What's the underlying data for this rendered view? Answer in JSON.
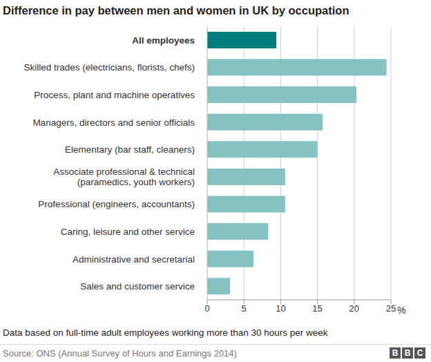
{
  "chart_data": {
    "type": "bar",
    "orientation": "horizontal",
    "title": "Difference in pay between men and women in UK by occupation",
    "categories": [
      "All employees",
      "Skilled trades (electricians, florists, chefs)",
      "Process, plant and machine operatives",
      "Managers, directors and senior officials",
      "Elementary (bar staff, cleaners)",
      "Associate professional & technical\n(paramedics, youth workers)",
      "Professional (engineers, accountants)",
      "Caring, leisure and other service",
      "Administrative and secretarial",
      "Sales and customer service"
    ],
    "values": [
      9.4,
      24.4,
      20.3,
      15.7,
      15.0,
      10.6,
      10.6,
      8.3,
      6.3,
      3.1
    ],
    "colors": [
      "#007c7c",
      "#86c2c2",
      "#86c2c2",
      "#86c2c2",
      "#86c2c2",
      "#86c2c2",
      "#86c2c2",
      "#86c2c2",
      "#86c2c2",
      "#86c2c2"
    ],
    "xlim": [
      0,
      25
    ],
    "xticks": [
      0,
      5,
      10,
      15,
      20,
      25
    ],
    "xlabel": "%",
    "grid": true,
    "note": "Data based on full-time adult employees working more than 30 hours per week",
    "source": "Source: ONS (Annual Survey of Hours and Earnings 2014)",
    "logo": "BBC"
  }
}
